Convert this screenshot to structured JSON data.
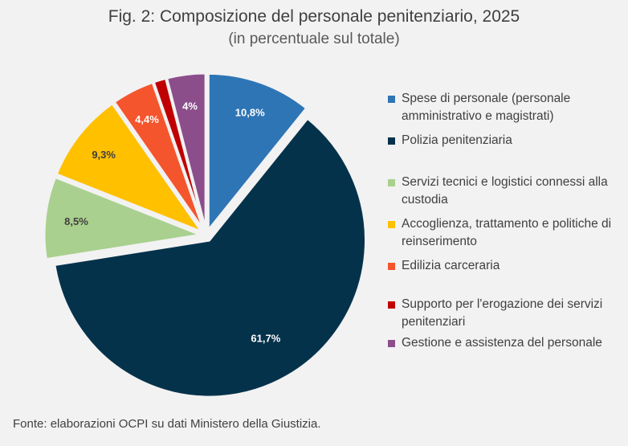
{
  "title": "Fig. 2: Composizione del personale penitenziario, 2025",
  "subtitle": "(in percentuale sul totale)",
  "source": "Fonte: elaborazioni OCPI su dati Ministero della Giustizia.",
  "chart_data": {
    "type": "pie",
    "title": "Fig. 2: Composizione del personale penitenziario, 2025",
    "subtitle": "(in percentuale sul totale)",
    "legend_position": "right",
    "slices": [
      {
        "name": "Spese di personale (personale amministrativo e magistrati)",
        "value": 10.8,
        "label": "10,8%",
        "color": "#2e75b6",
        "label_color": "#ffffff"
      },
      {
        "name": "Polizia penitenziaria",
        "value": 61.7,
        "label": "61,7%",
        "color": "#05324b",
        "label_color": "#ffffff"
      },
      {
        "name": "Servizi tecnici e logistici connessi alla custodia",
        "value": 8.5,
        "label": "8,5%",
        "color": "#a9d08e",
        "label_color": "#404040"
      },
      {
        "name": "Accoglienza, trattamento e politiche di reinserimento",
        "value": 9.3,
        "label": "9,3%",
        "color": "#ffc000",
        "label_color": "#404040"
      },
      {
        "name": "Edilizia carceraria",
        "value": 4.4,
        "label": "4,4%",
        "color": "#f4552d",
        "label_color": "#ffffff"
      },
      {
        "name": "Supporto per l'erogazione dei servizi penitenziari",
        "value": 1.3,
        "label": "",
        "color": "#c00000",
        "label_color": "#ffffff"
      },
      {
        "name": "Gestione e assistenza del personale",
        "value": 4.0,
        "label": "4%",
        "color": "#8b4e8b",
        "label_color": "#ffffff"
      }
    ]
  }
}
